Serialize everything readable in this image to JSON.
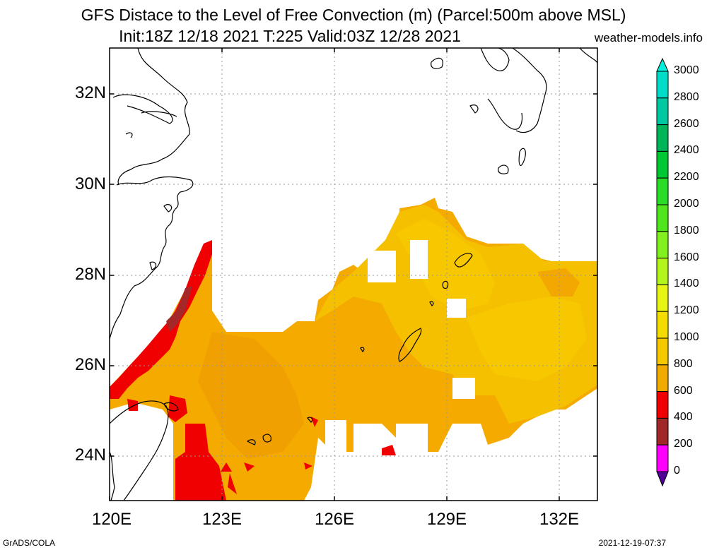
{
  "title_line1": "GFS Distace to the Level of Free Convection (m) (Parcel:500m above MSL)",
  "title_line2": "Init:18Z 12/18 2021 T:225 Valid:03Z 12/28 2021",
  "site": "weather-models.info",
  "footer_left": "GrADS/COLA",
  "footer_right": "2021-12-19-07:37",
  "lat_labels": [
    "32N",
    "30N",
    "28N",
    "26N",
    "24N"
  ],
  "lon_labels": [
    "120E",
    "123E",
    "126E",
    "129E",
    "132E"
  ],
  "colorbar": {
    "labels": [
      "3000",
      "2800",
      "2600",
      "2400",
      "2200",
      "2000",
      "1800",
      "1600",
      "1400",
      "1200",
      "1000",
      "800",
      "600",
      "400",
      "200",
      "0"
    ],
    "colors": [
      "#00dcc8",
      "#00c8a0",
      "#00b45a",
      "#00c832",
      "#28dc28",
      "#50e61e",
      "#82f01e",
      "#b4f51e",
      "#e6f514",
      "#f5dc00",
      "#f5c800",
      "#f0aa00",
      "#f00000",
      "#a02828",
      "#ff00ff",
      "#3c0096"
    ],
    "top_arrow_color": "#00f0dc",
    "bottom_arrow_color": "#500096"
  }
}
